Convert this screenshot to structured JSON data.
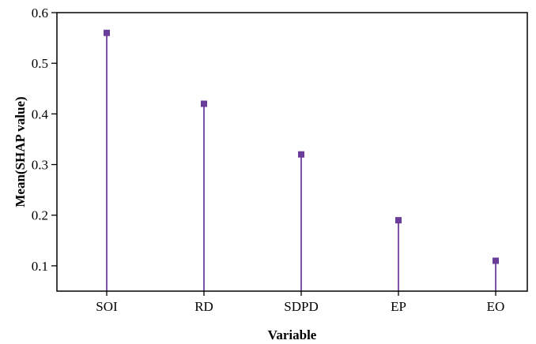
{
  "chart_data": {
    "type": "lollipop",
    "xlabel": "Variable",
    "ylabel": "Mean(SHAP value)",
    "categories": [
      "SOI",
      "RD",
      "SDPD",
      "EP",
      "EO"
    ],
    "values": [
      0.56,
      0.42,
      0.32,
      0.19,
      0.11
    ],
    "ylim": [
      0.05,
      0.6
    ],
    "yticks": [
      0.1,
      0.2,
      0.3,
      0.4,
      0.5,
      0.6
    ],
    "ytick_labels": [
      "0.1",
      "0.2",
      "0.3",
      "0.4",
      "0.5",
      "0.6"
    ],
    "grid": false,
    "legend": "none",
    "colors": {
      "marker": "#6a3d9a",
      "stem": "#7b52a8",
      "axis": "#000000"
    }
  }
}
